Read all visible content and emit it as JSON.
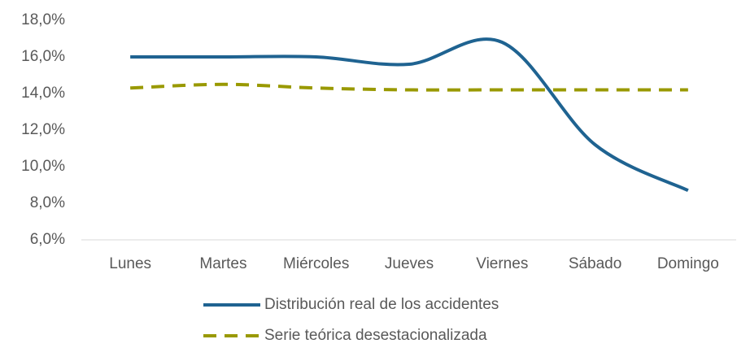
{
  "chart_data": {
    "type": "line",
    "categories": [
      "Lunes",
      "Martes",
      "Miércoles",
      "Jueves",
      "Viernes",
      "Sábado",
      "Domingo"
    ],
    "series": [
      {
        "name": "Distribución real de los accidentes",
        "color": "#1f6391",
        "dash": false,
        "values": [
          16.0,
          16.0,
          16.0,
          15.6,
          16.8,
          11.2,
          8.7
        ]
      },
      {
        "name": "Serie teórica desestacionalizada",
        "color": "#999900",
        "dash": true,
        "values": [
          14.3,
          14.5,
          14.3,
          14.2,
          14.2,
          14.2,
          14.2
        ]
      }
    ],
    "ylim": [
      6,
      18
    ],
    "yticks": [
      {
        "value": 6,
        "label": "6,0%"
      },
      {
        "value": 8,
        "label": "8,0%"
      },
      {
        "value": 10,
        "label": "10,0%"
      },
      {
        "value": 12,
        "label": "12,0%"
      },
      {
        "value": 14,
        "label": "14,0%"
      },
      {
        "value": 16,
        "label": "16,0%"
      },
      {
        "value": 18,
        "label": "18,0%"
      }
    ],
    "smooth": true,
    "grid": false,
    "legend": "bottom"
  }
}
